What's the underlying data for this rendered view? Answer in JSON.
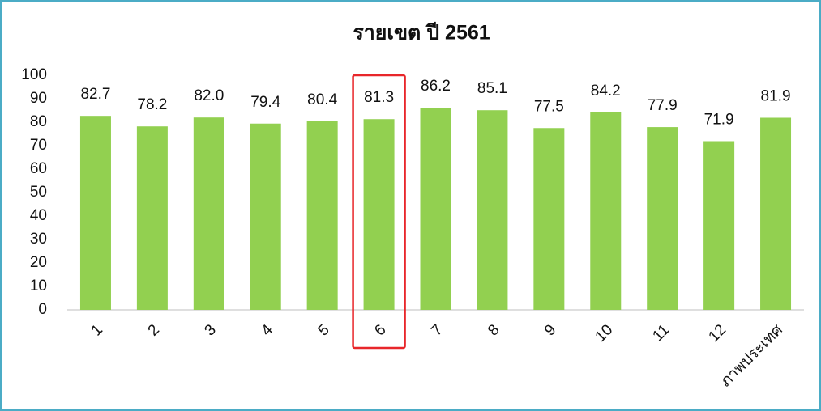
{
  "chart_data": {
    "type": "bar",
    "title": "รายเขต ปี 2561",
    "categories": [
      "1",
      "2",
      "3",
      "4",
      "5",
      "6",
      "7",
      "8",
      "9",
      "10",
      "11",
      "12",
      "ภาพประเทศ"
    ],
    "values": [
      82.7,
      78.2,
      82.0,
      79.4,
      80.4,
      81.3,
      86.2,
      85.1,
      77.5,
      84.2,
      77.9,
      71.9,
      81.9
    ],
    "value_labels": [
      "82.7",
      "78.2",
      "82.0",
      "79.4",
      "80.4",
      "81.3",
      "86.2",
      "85.1",
      "77.5",
      "84.2",
      "77.9",
      "71.9",
      "81.9"
    ],
    "color": "#92d050",
    "ylim": [
      0,
      100
    ],
    "yticks": [
      0,
      10,
      20,
      30,
      40,
      50,
      60,
      70,
      80,
      90,
      100
    ],
    "grid": false,
    "highlight": 5,
    "highlight_color": "#e8262a"
  }
}
